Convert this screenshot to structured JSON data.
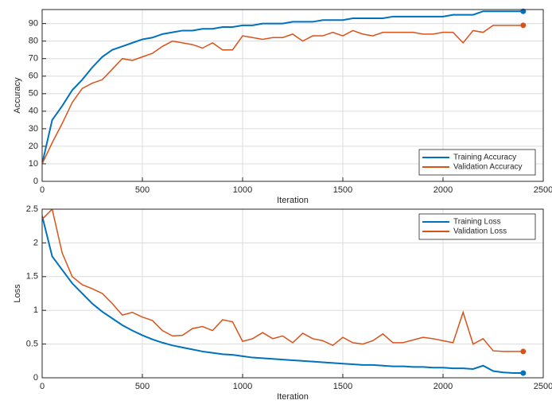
{
  "chart_data": [
    {
      "type": "line",
      "ylabel": "Accuracy",
      "xlabel": "Iteration",
      "x": [
        0,
        50,
        100,
        150,
        200,
        250,
        300,
        350,
        400,
        450,
        500,
        550,
        600,
        650,
        700,
        750,
        800,
        850,
        900,
        950,
        1000,
        1050,
        1100,
        1150,
        1200,
        1250,
        1300,
        1350,
        1400,
        1450,
        1500,
        1550,
        1600,
        1650,
        1700,
        1750,
        1800,
        1850,
        1900,
        1950,
        2000,
        2050,
        2100,
        2150,
        2200,
        2250,
        2300,
        2350,
        2400
      ],
      "series": [
        {
          "name": "Training Accuracy",
          "color": "#0072bd",
          "values": [
            10,
            35,
            43,
            52,
            58,
            65,
            71,
            75,
            77,
            79,
            81,
            82,
            84,
            85,
            86,
            86,
            87,
            87,
            88,
            88,
            89,
            89,
            90,
            90,
            90,
            91,
            91,
            91,
            92,
            92,
            92,
            93,
            93,
            93,
            93,
            94,
            94,
            94,
            94,
            94,
            94,
            95,
            95,
            95,
            97,
            97,
            97,
            97,
            97
          ]
        },
        {
          "name": "Validation Accuracy",
          "color": "#d95319",
          "values": [
            10,
            22,
            33,
            45,
            53,
            56,
            58,
            64,
            70,
            69,
            71,
            73,
            77,
            80,
            79,
            78,
            76,
            79,
            75,
            75,
            83,
            82,
            81,
            82,
            82,
            84,
            80,
            83,
            83,
            85,
            83,
            86,
            84,
            83,
            85,
            85,
            85,
            85,
            84,
            84,
            85,
            85,
            79,
            86,
            85,
            89,
            89,
            89,
            89
          ]
        }
      ],
      "xlim": [
        0,
        2500
      ],
      "xticks": [
        0,
        500,
        1000,
        1500,
        2000,
        2500
      ],
      "ylim": [
        0,
        98
      ],
      "yticks": [
        0,
        10,
        20,
        30,
        40,
        50,
        60,
        70,
        80,
        90
      ],
      "grid": true,
      "legend": "lower right",
      "last_point_marker": true
    },
    {
      "type": "line",
      "ylabel": "Loss",
      "xlabel": "Iteration",
      "x": [
        0,
        50,
        100,
        150,
        200,
        250,
        300,
        350,
        400,
        450,
        500,
        550,
        600,
        650,
        700,
        750,
        800,
        850,
        900,
        950,
        1000,
        1050,
        1100,
        1150,
        1200,
        1250,
        1300,
        1350,
        1400,
        1450,
        1500,
        1550,
        1600,
        1650,
        1700,
        1750,
        1800,
        1850,
        1900,
        1950,
        2000,
        2050,
        2100,
        2150,
        2200,
        2250,
        2300,
        2350,
        2400
      ],
      "series": [
        {
          "name": "Training Loss",
          "color": "#0072bd",
          "values": [
            2.4,
            1.8,
            1.6,
            1.4,
            1.25,
            1.1,
            0.98,
            0.88,
            0.78,
            0.7,
            0.63,
            0.57,
            0.52,
            0.48,
            0.45,
            0.42,
            0.39,
            0.37,
            0.35,
            0.34,
            0.32,
            0.3,
            0.29,
            0.28,
            0.27,
            0.26,
            0.25,
            0.24,
            0.23,
            0.22,
            0.21,
            0.2,
            0.19,
            0.19,
            0.18,
            0.17,
            0.17,
            0.16,
            0.16,
            0.15,
            0.15,
            0.14,
            0.14,
            0.13,
            0.18,
            0.1,
            0.08,
            0.07,
            0.07
          ]
        },
        {
          "name": "Validation Loss",
          "color": "#d95319",
          "values": [
            2.35,
            2.5,
            1.85,
            1.5,
            1.38,
            1.32,
            1.25,
            1.1,
            0.93,
            0.97,
            0.9,
            0.85,
            0.7,
            0.62,
            0.63,
            0.73,
            0.76,
            0.7,
            0.86,
            0.83,
            0.54,
            0.58,
            0.67,
            0.58,
            0.62,
            0.52,
            0.66,
            0.58,
            0.55,
            0.48,
            0.6,
            0.52,
            0.5,
            0.55,
            0.65,
            0.52,
            0.52,
            0.56,
            0.6,
            0.58,
            0.55,
            0.52,
            0.97,
            0.5,
            0.58,
            0.4,
            0.39,
            0.39,
            0.39
          ]
        }
      ],
      "xlim": [
        0,
        2500
      ],
      "xticks": [
        0,
        500,
        1000,
        1500,
        2000,
        2500
      ],
      "ylim": [
        0,
        2.5
      ],
      "yticks": [
        0,
        0.5,
        1,
        1.5,
        2,
        2.5
      ],
      "grid": true,
      "legend": "upper right",
      "last_point_marker": true
    }
  ]
}
